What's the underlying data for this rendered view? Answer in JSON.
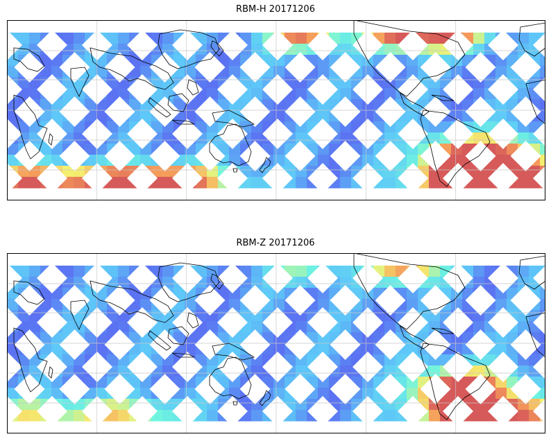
{
  "panels": [
    {
      "id": "top",
      "title": "RBM-H 20171206",
      "intensity": {
        "north_hotspots": [
          [
            0.55,
            0.8
          ],
          [
            0.73,
            0.9
          ],
          [
            0.83,
            0.75
          ]
        ],
        "south_hotspots": [
          [
            0.05,
            0.85
          ],
          [
            0.22,
            0.8
          ],
          [
            0.33,
            0.7
          ],
          [
            0.86,
            0.95
          ],
          [
            0.93,
            0.9
          ]
        ],
        "mid_hotspots": [
          [
            0.83,
            0.8
          ],
          [
            0.93,
            0.85
          ]
        ]
      }
    },
    {
      "id": "bottom",
      "title": "RBM-Z 20171206",
      "intensity": {
        "north_hotspots": [
          [
            0.55,
            0.35
          ],
          [
            0.74,
            0.75
          ]
        ],
        "south_hotspots": [
          [
            0.05,
            0.45
          ],
          [
            0.22,
            0.5
          ],
          [
            0.86,
            0.6
          ],
          [
            0.95,
            0.55
          ]
        ],
        "mid_hotspots": [
          [
            0.82,
            0.9
          ],
          [
            0.9,
            0.55
          ]
        ]
      }
    }
  ],
  "colors": {
    "low": "#5a5cf0",
    "mid": "#5ec8f8",
    "cyan": "#6ef5e0",
    "yellow": "#f5f070",
    "orange": "#f59a5a",
    "high": "#d65a5a",
    "coast": "#000000",
    "grid": "#c8c8c8"
  }
}
